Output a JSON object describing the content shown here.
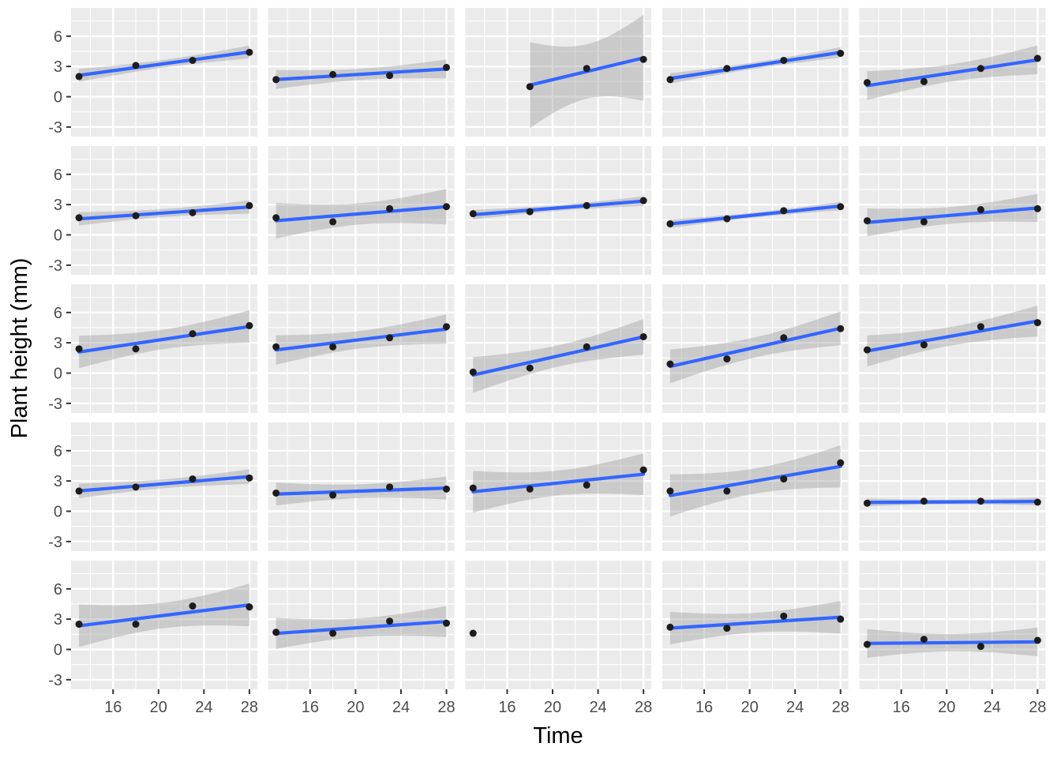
{
  "chart_data": {
    "type": "scatter",
    "title": "",
    "xlabel": "Time",
    "ylabel": "Plant height (mm)",
    "facet": {
      "rows": 5,
      "cols": 5
    },
    "x_ticks": [
      16,
      20,
      24,
      28
    ],
    "x_minor_ticks": [
      14,
      18,
      22,
      26
    ],
    "y_ticks": [
      6,
      3,
      0,
      -3
    ],
    "y_minor_ticks": [
      7.5,
      4.5,
      1.5,
      -1.5
    ],
    "xlim": [
      12.3,
      28.7
    ],
    "ylim": [
      -3.95,
      8.8
    ],
    "grid": "on",
    "legend": "none",
    "smooth": {
      "method": "lm",
      "ci_level": 0.95
    },
    "colors": {
      "panel_bg": "#EBEBEB",
      "grid": "#FFFFFF",
      "line": "#3366FF",
      "band": "#999999",
      "band_opacity": 0.4,
      "point": "#1C1C1C",
      "tick_label": "#4D4D4D",
      "tick_mark": "#333333",
      "axis_title": "#000000"
    },
    "panels": [
      {
        "row": 0,
        "col": 0,
        "points": [
          [
            13,
            2.0
          ],
          [
            18,
            3.1
          ],
          [
            23,
            3.6
          ],
          [
            28,
            4.4
          ]
        ]
      },
      {
        "row": 0,
        "col": 1,
        "points": [
          [
            13,
            1.7
          ],
          [
            18,
            2.2
          ],
          [
            23,
            2.1
          ],
          [
            28,
            2.9
          ]
        ]
      },
      {
        "row": 0,
        "col": 2,
        "points": [
          [
            18,
            1.0
          ],
          [
            23,
            2.8
          ],
          [
            28,
            3.7
          ]
        ]
      },
      {
        "row": 0,
        "col": 3,
        "points": [
          [
            13,
            1.7
          ],
          [
            18,
            2.8
          ],
          [
            23,
            3.6
          ],
          [
            28,
            4.3
          ]
        ]
      },
      {
        "row": 0,
        "col": 4,
        "points": [
          [
            13,
            1.4
          ],
          [
            18,
            1.5
          ],
          [
            23,
            2.8
          ],
          [
            28,
            3.8
          ]
        ]
      },
      {
        "row": 1,
        "col": 0,
        "points": [
          [
            13,
            1.7
          ],
          [
            18,
            1.9
          ],
          [
            23,
            2.2
          ],
          [
            28,
            2.9
          ]
        ]
      },
      {
        "row": 1,
        "col": 1,
        "points": [
          [
            13,
            1.7
          ],
          [
            18,
            1.3
          ],
          [
            23,
            2.6
          ],
          [
            28,
            2.8
          ]
        ]
      },
      {
        "row": 1,
        "col": 2,
        "points": [
          [
            13,
            2.1
          ],
          [
            18,
            2.3
          ],
          [
            23,
            2.9
          ],
          [
            28,
            3.4
          ]
        ]
      },
      {
        "row": 1,
        "col": 3,
        "points": [
          [
            13,
            1.1
          ],
          [
            18,
            1.6
          ],
          [
            23,
            2.4
          ],
          [
            28,
            2.8
          ]
        ]
      },
      {
        "row": 1,
        "col": 4,
        "points": [
          [
            13,
            1.4
          ],
          [
            18,
            1.3
          ],
          [
            23,
            2.5
          ],
          [
            28,
            2.6
          ]
        ]
      },
      {
        "row": 2,
        "col": 0,
        "points": [
          [
            13,
            2.4
          ],
          [
            18,
            2.4
          ],
          [
            23,
            3.9
          ],
          [
            28,
            4.7
          ]
        ]
      },
      {
        "row": 2,
        "col": 1,
        "points": [
          [
            13,
            2.6
          ],
          [
            18,
            2.6
          ],
          [
            23,
            3.5
          ],
          [
            28,
            4.6
          ]
        ]
      },
      {
        "row": 2,
        "col": 2,
        "points": [
          [
            13,
            0.1
          ],
          [
            18,
            0.5
          ],
          [
            23,
            2.6
          ],
          [
            28,
            3.6
          ]
        ]
      },
      {
        "row": 2,
        "col": 3,
        "points": [
          [
            13,
            0.9
          ],
          [
            18,
            1.4
          ],
          [
            23,
            3.5
          ],
          [
            28,
            4.4
          ]
        ]
      },
      {
        "row": 2,
        "col": 4,
        "points": [
          [
            13,
            2.3
          ],
          [
            18,
            2.8
          ],
          [
            23,
            4.6
          ],
          [
            28,
            5.0
          ]
        ]
      },
      {
        "row": 3,
        "col": 0,
        "points": [
          [
            13,
            2.0
          ],
          [
            18,
            2.4
          ],
          [
            23,
            3.2
          ],
          [
            28,
            3.3
          ]
        ]
      },
      {
        "row": 3,
        "col": 1,
        "points": [
          [
            13,
            1.8
          ],
          [
            18,
            1.6
          ],
          [
            23,
            2.4
          ],
          [
            28,
            2.2
          ]
        ]
      },
      {
        "row": 3,
        "col": 2,
        "points": [
          [
            13,
            2.3
          ],
          [
            18,
            2.2
          ],
          [
            23,
            2.6
          ],
          [
            28,
            4.1
          ]
        ]
      },
      {
        "row": 3,
        "col": 3,
        "points": [
          [
            13,
            2.0
          ],
          [
            18,
            2.0
          ],
          [
            23,
            3.2
          ],
          [
            28,
            4.8
          ]
        ]
      },
      {
        "row": 3,
        "col": 4,
        "points": [
          [
            13,
            0.8
          ],
          [
            18,
            1.0
          ],
          [
            23,
            1.0
          ],
          [
            28,
            0.9
          ]
        ]
      },
      {
        "row": 4,
        "col": 0,
        "points": [
          [
            13,
            2.5
          ],
          [
            18,
            2.5
          ],
          [
            23,
            4.3
          ],
          [
            28,
            4.2
          ]
        ]
      },
      {
        "row": 4,
        "col": 1,
        "points": [
          [
            13,
            1.7
          ],
          [
            18,
            1.6
          ],
          [
            23,
            2.8
          ],
          [
            28,
            2.6
          ]
        ]
      },
      {
        "row": 4,
        "col": 2,
        "points": [
          [
            13,
            1.6
          ]
        ]
      },
      {
        "row": 4,
        "col": 3,
        "points": [
          [
            13,
            2.2
          ],
          [
            18,
            2.1
          ],
          [
            23,
            3.3
          ],
          [
            28,
            3.0
          ]
        ]
      },
      {
        "row": 4,
        "col": 4,
        "points": [
          [
            13,
            0.5
          ],
          [
            18,
            1.0
          ],
          [
            23,
            0.3
          ],
          [
            28,
            0.9
          ]
        ]
      }
    ]
  }
}
